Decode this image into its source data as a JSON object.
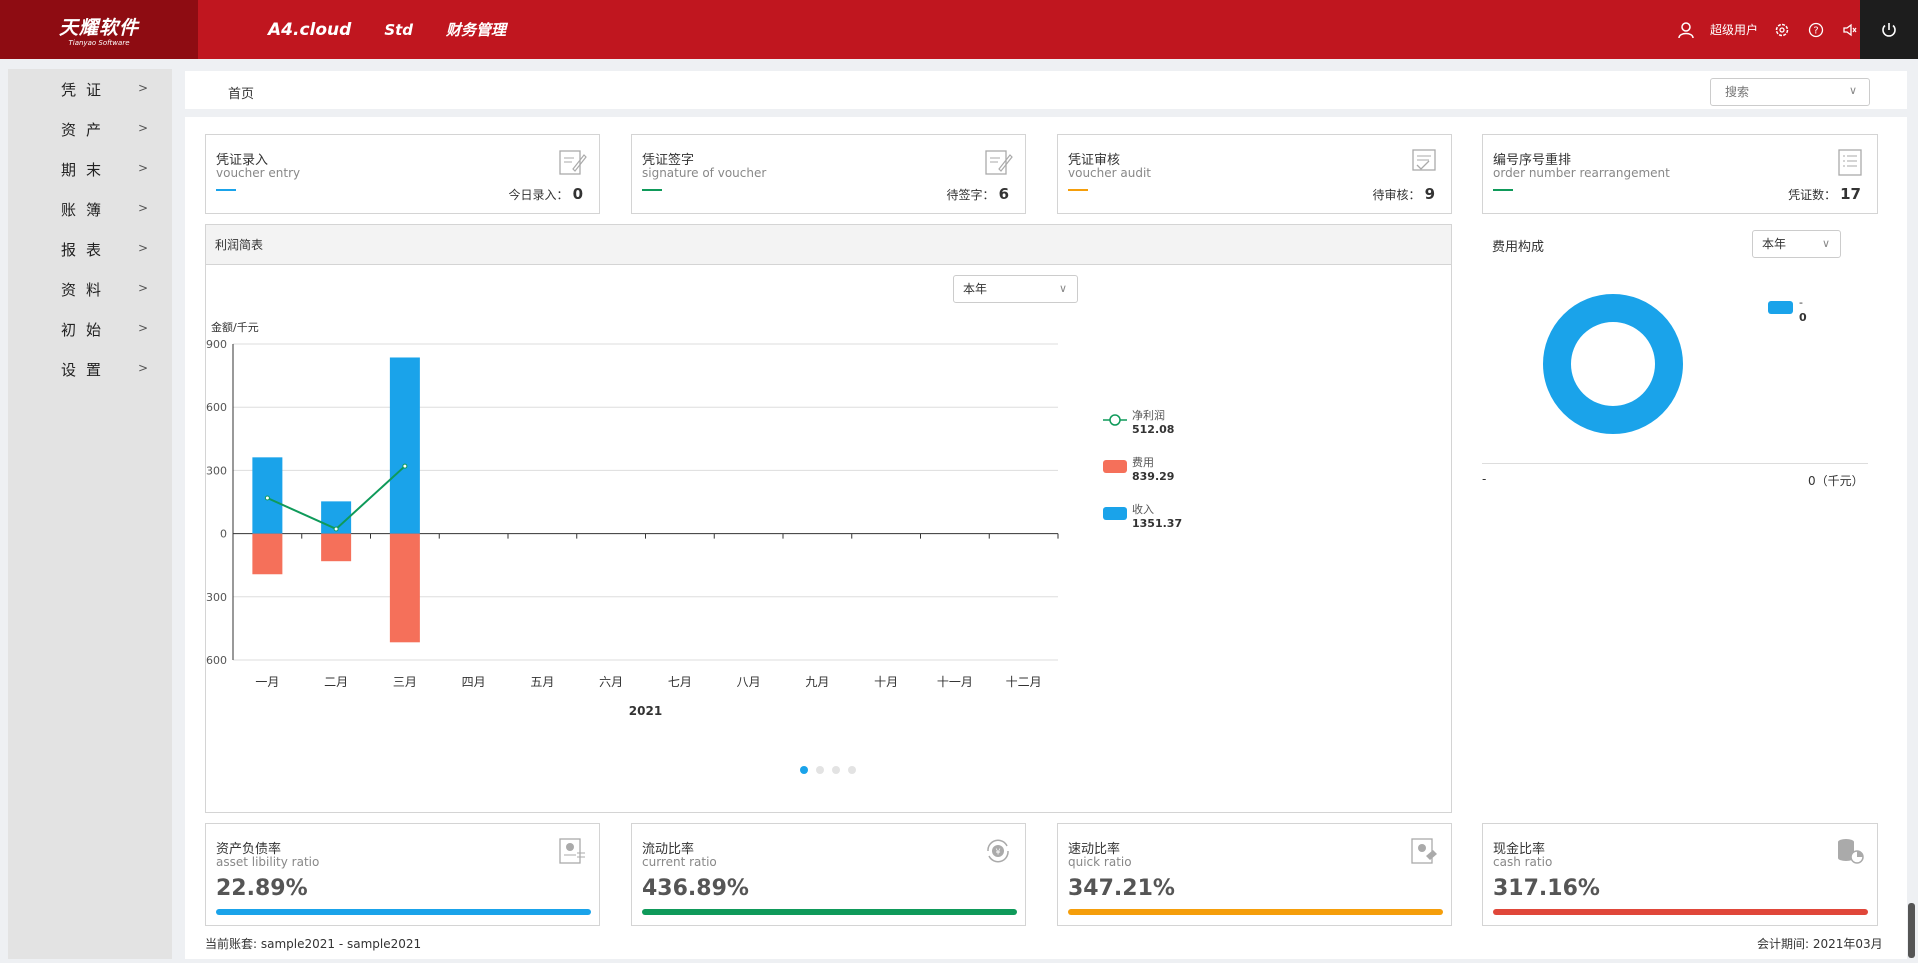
{
  "header": {
    "logo_main": "天耀软件",
    "logo_sub": "Tianyao Software",
    "nav": [
      "A4.cloud",
      "Std",
      "财务管理"
    ],
    "user": "超级用户"
  },
  "sidebar": {
    "items": [
      {
        "label": "凭证"
      },
      {
        "label": "资产"
      },
      {
        "label": "期末"
      },
      {
        "label": "账簿"
      },
      {
        "label": "报表"
      },
      {
        "label": "资料"
      },
      {
        "label": "初始"
      },
      {
        "label": "设置"
      }
    ]
  },
  "breadcrumb": "首页",
  "search": {
    "placeholder": "搜索"
  },
  "top_cards": [
    {
      "title": "凭证录入",
      "subtitle": "voucher entry",
      "count_label": "今日录入：",
      "count": "0",
      "color": "#1aa3ea"
    },
    {
      "title": "凭证签字",
      "subtitle": "signature of voucher",
      "count_label": "待签字：",
      "count": "6",
      "color": "#0f9a5a"
    },
    {
      "title": "凭证审核",
      "subtitle": "voucher audit",
      "count_label": "待审核：",
      "count": "9",
      "color": "#f59e0b"
    },
    {
      "title": "编号序号重排",
      "subtitle": "order number rearrangement",
      "count_label": "凭证数：",
      "count": "17",
      "color": "#0f9a5a"
    }
  ],
  "chart_panel": {
    "title": "利润简表",
    "period_select": "本年"
  },
  "chart_data": {
    "type": "bar",
    "title": "利润简表",
    "ylabel": "金额/千元",
    "xlabel": "2021",
    "categories": [
      "一月",
      "二月",
      "三月",
      "四月",
      "五月",
      "六月",
      "七月",
      "八月",
      "九月",
      "十月",
      "十一月",
      "十二月"
    ],
    "ylim": [
      -600,
      900
    ],
    "yticks": [
      900,
      600,
      300,
      0,
      -300,
      -600
    ],
    "ytick_labels": [
      "900",
      "600",
      "300",
      "0",
      "300",
      "600"
    ],
    "series": [
      {
        "name": "收入",
        "total": "1351.37",
        "type": "bar",
        "color": "#1aa3ea",
        "values": [
          362,
          153,
          836,
          0,
          0,
          0,
          0,
          0,
          0,
          0,
          0,
          0
        ]
      },
      {
        "name": "费用",
        "total": "839.29",
        "type": "bar",
        "color": "#f5705a",
        "values": [
          -193,
          -131,
          -516,
          0,
          0,
          0,
          0,
          0,
          0,
          0,
          0,
          0
        ]
      },
      {
        "name": "净利润",
        "total": "512.08",
        "type": "line",
        "color": "#0f9a5a",
        "values": [
          169,
          22,
          320,
          null,
          null,
          null,
          null,
          null,
          null,
          null,
          null,
          null
        ]
      }
    ],
    "pager_pages": 4,
    "pager_active": 0
  },
  "fee_panel": {
    "title": "费用构成",
    "period_select": "本年",
    "legend_name": "-",
    "legend_value": "0",
    "ring_color": "#1aa3ea",
    "footer_left": "-",
    "footer_right": "0（千元）"
  },
  "ratio_cards": [
    {
      "title": "资产负债率",
      "subtitle": "asset libility ratio",
      "value": "22.89%",
      "color": "#1aa3ea"
    },
    {
      "title": "流动比率",
      "subtitle": "current ratio",
      "value": "436.89%",
      "color": "#0f9a5a"
    },
    {
      "title": "速动比率",
      "subtitle": "quick ratio",
      "value": "347.21%",
      "color": "#f59e0b"
    },
    {
      "title": "现金比率",
      "subtitle": "cash ratio",
      "value": "317.16%",
      "color": "#e0473a"
    }
  ],
  "footer": {
    "account_set": "当前账套: sample2021 - sample2021",
    "period": "会计期间: 2021年03月"
  }
}
